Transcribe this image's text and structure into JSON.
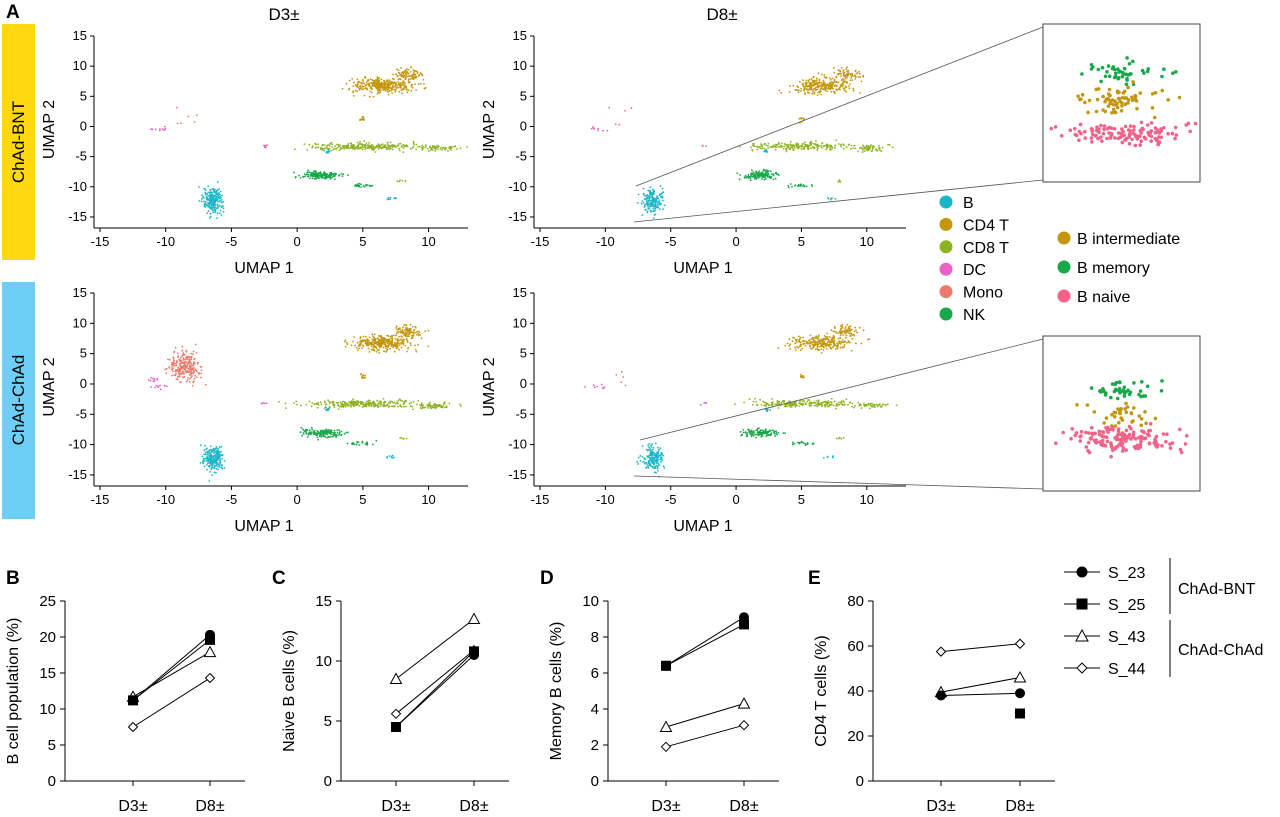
{
  "panel_letters": {
    "A": "A",
    "B": "B",
    "C": "C",
    "D": "D",
    "E": "E"
  },
  "group_labels": {
    "bnt": {
      "text": "ChAd-BNT",
      "color": "#FFD713"
    },
    "chad": {
      "text": "ChAd-ChAd",
      "color": "#6ECFF6"
    }
  },
  "umap": {
    "col_titles": [
      "D3±",
      "D8±"
    ],
    "xlabel": "UMAP 1",
    "ylabel": "UMAP 2",
    "xticks": [
      -15,
      -10,
      -5,
      0,
      5,
      10
    ],
    "yticks": [
      15,
      10,
      5,
      0,
      -5,
      -10,
      -15
    ],
    "xlim": [
      -15,
      13
    ],
    "ylim": [
      -16,
      15
    ]
  },
  "celltype_legend": [
    {
      "label": "B",
      "color": "#1CB5C8"
    },
    {
      "label": "CD4 T",
      "color": "#C4960F"
    },
    {
      "label": "CD8 T",
      "color": "#8DB320"
    },
    {
      "label": "DC",
      "color": "#EC5FC6"
    },
    {
      "label": "Mono",
      "color": "#EA7A6A"
    },
    {
      "label": "NK",
      "color": "#17A84A"
    }
  ],
  "bsubset_legend": [
    {
      "label": "B intermediate",
      "color": "#C4960F"
    },
    {
      "label": "B memory",
      "color": "#17A84A"
    },
    {
      "label": "B naive",
      "color": "#F2638A"
    }
  ],
  "sample_legend": [
    {
      "label": "S_23",
      "marker": "circle",
      "filled": true,
      "group": "ChAd-BNT"
    },
    {
      "label": "S_25",
      "marker": "square",
      "filled": true,
      "group": "ChAd-BNT"
    },
    {
      "label": "S_43",
      "marker": "triangle",
      "filled": false,
      "group": "ChAd-ChAd"
    },
    {
      "label": "S_44",
      "marker": "diamond",
      "filled": false,
      "group": "ChAd-ChAd"
    }
  ],
  "sample_groups": [
    "ChAd-BNT",
    "ChAd-ChAd"
  ],
  "chart_data": [
    {
      "type": "line",
      "panel": "B",
      "categories": [
        "D3±",
        "D8±"
      ],
      "ylabel": "B cell population (%)",
      "ylim": [
        0,
        25
      ],
      "yticks": [
        0,
        5,
        10,
        15,
        20,
        25
      ],
      "series": [
        {
          "name": "S_23",
          "values": [
            11.2,
            20.3
          ]
        },
        {
          "name": "S_25",
          "values": [
            11.2,
            19.6
          ]
        },
        {
          "name": "S_43",
          "values": [
            11.7,
            17.9
          ]
        },
        {
          "name": "S_44",
          "values": [
            7.5,
            14.3
          ]
        }
      ]
    },
    {
      "type": "line",
      "panel": "C",
      "categories": [
        "D3±",
        "D8±"
      ],
      "ylabel": "Naive B cells (%)",
      "ylim": [
        0,
        15
      ],
      "yticks": [
        0,
        5,
        10,
        15
      ],
      "series": [
        {
          "name": "S_23",
          "values": [
            4.5,
            10.5
          ]
        },
        {
          "name": "S_25",
          "values": [
            4.5,
            10.8
          ]
        },
        {
          "name": "S_43",
          "values": [
            8.5,
            13.5
          ]
        },
        {
          "name": "S_44",
          "values": [
            5.6,
            10.9
          ]
        }
      ]
    },
    {
      "type": "line",
      "panel": "D",
      "categories": [
        "D3±",
        "D8±"
      ],
      "ylabel": "Memory B cells (%)",
      "ylim": [
        0,
        10
      ],
      "yticks": [
        0,
        2,
        4,
        6,
        8,
        10
      ],
      "series": [
        {
          "name": "S_23",
          "values": [
            6.4,
            9.1
          ]
        },
        {
          "name": "S_25",
          "values": [
            6.4,
            8.7
          ]
        },
        {
          "name": "S_43",
          "values": [
            3.0,
            4.3
          ]
        },
        {
          "name": "S_44",
          "values": [
            1.9,
            3.1
          ]
        }
      ]
    },
    {
      "type": "line",
      "panel": "E",
      "categories": [
        "D3±",
        "D8±"
      ],
      "ylabel": "CD4 T cells (%)",
      "ylim": [
        0,
        80
      ],
      "yticks": [
        0,
        20,
        40,
        60,
        80
      ],
      "series": [
        {
          "name": "S_23",
          "values": [
            38,
            39
          ]
        },
        {
          "name": "S_25",
          "values": [
            null,
            30
          ]
        },
        {
          "name": "S_43",
          "values": [
            39.5,
            46
          ]
        },
        {
          "name": "S_44",
          "values": [
            57.5,
            61
          ]
        }
      ]
    }
  ]
}
